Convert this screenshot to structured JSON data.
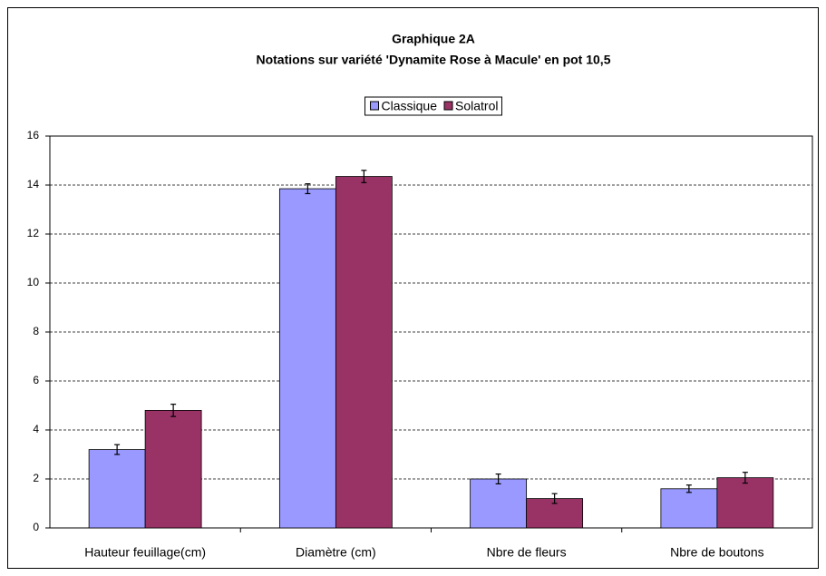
{
  "chart_data": {
    "type": "bar",
    "title": "Graphique 2A",
    "subtitle": "Notations sur variété 'Dynamite Rose à Macule' en pot 10,5",
    "categories": [
      "Hauteur feuillage(cm)",
      "Diamètre (cm)",
      "Nbre de fleurs",
      "Nbre de boutons"
    ],
    "series": [
      {
        "name": "Classique",
        "color": "#9999ff",
        "values": [
          3.2,
          13.85,
          2.0,
          1.6
        ],
        "errors": [
          0.2,
          0.2,
          0.2,
          0.15
        ]
      },
      {
        "name": "Solatrol",
        "color": "#993366",
        "values": [
          4.8,
          14.35,
          1.2,
          2.05
        ],
        "errors": [
          0.25,
          0.25,
          0.2,
          0.22
        ]
      }
    ],
    "ylim": [
      0,
      16
    ],
    "yticks": [
      0,
      2,
      4,
      6,
      8,
      10,
      12,
      14,
      16
    ],
    "grid": true,
    "legend": "top"
  }
}
